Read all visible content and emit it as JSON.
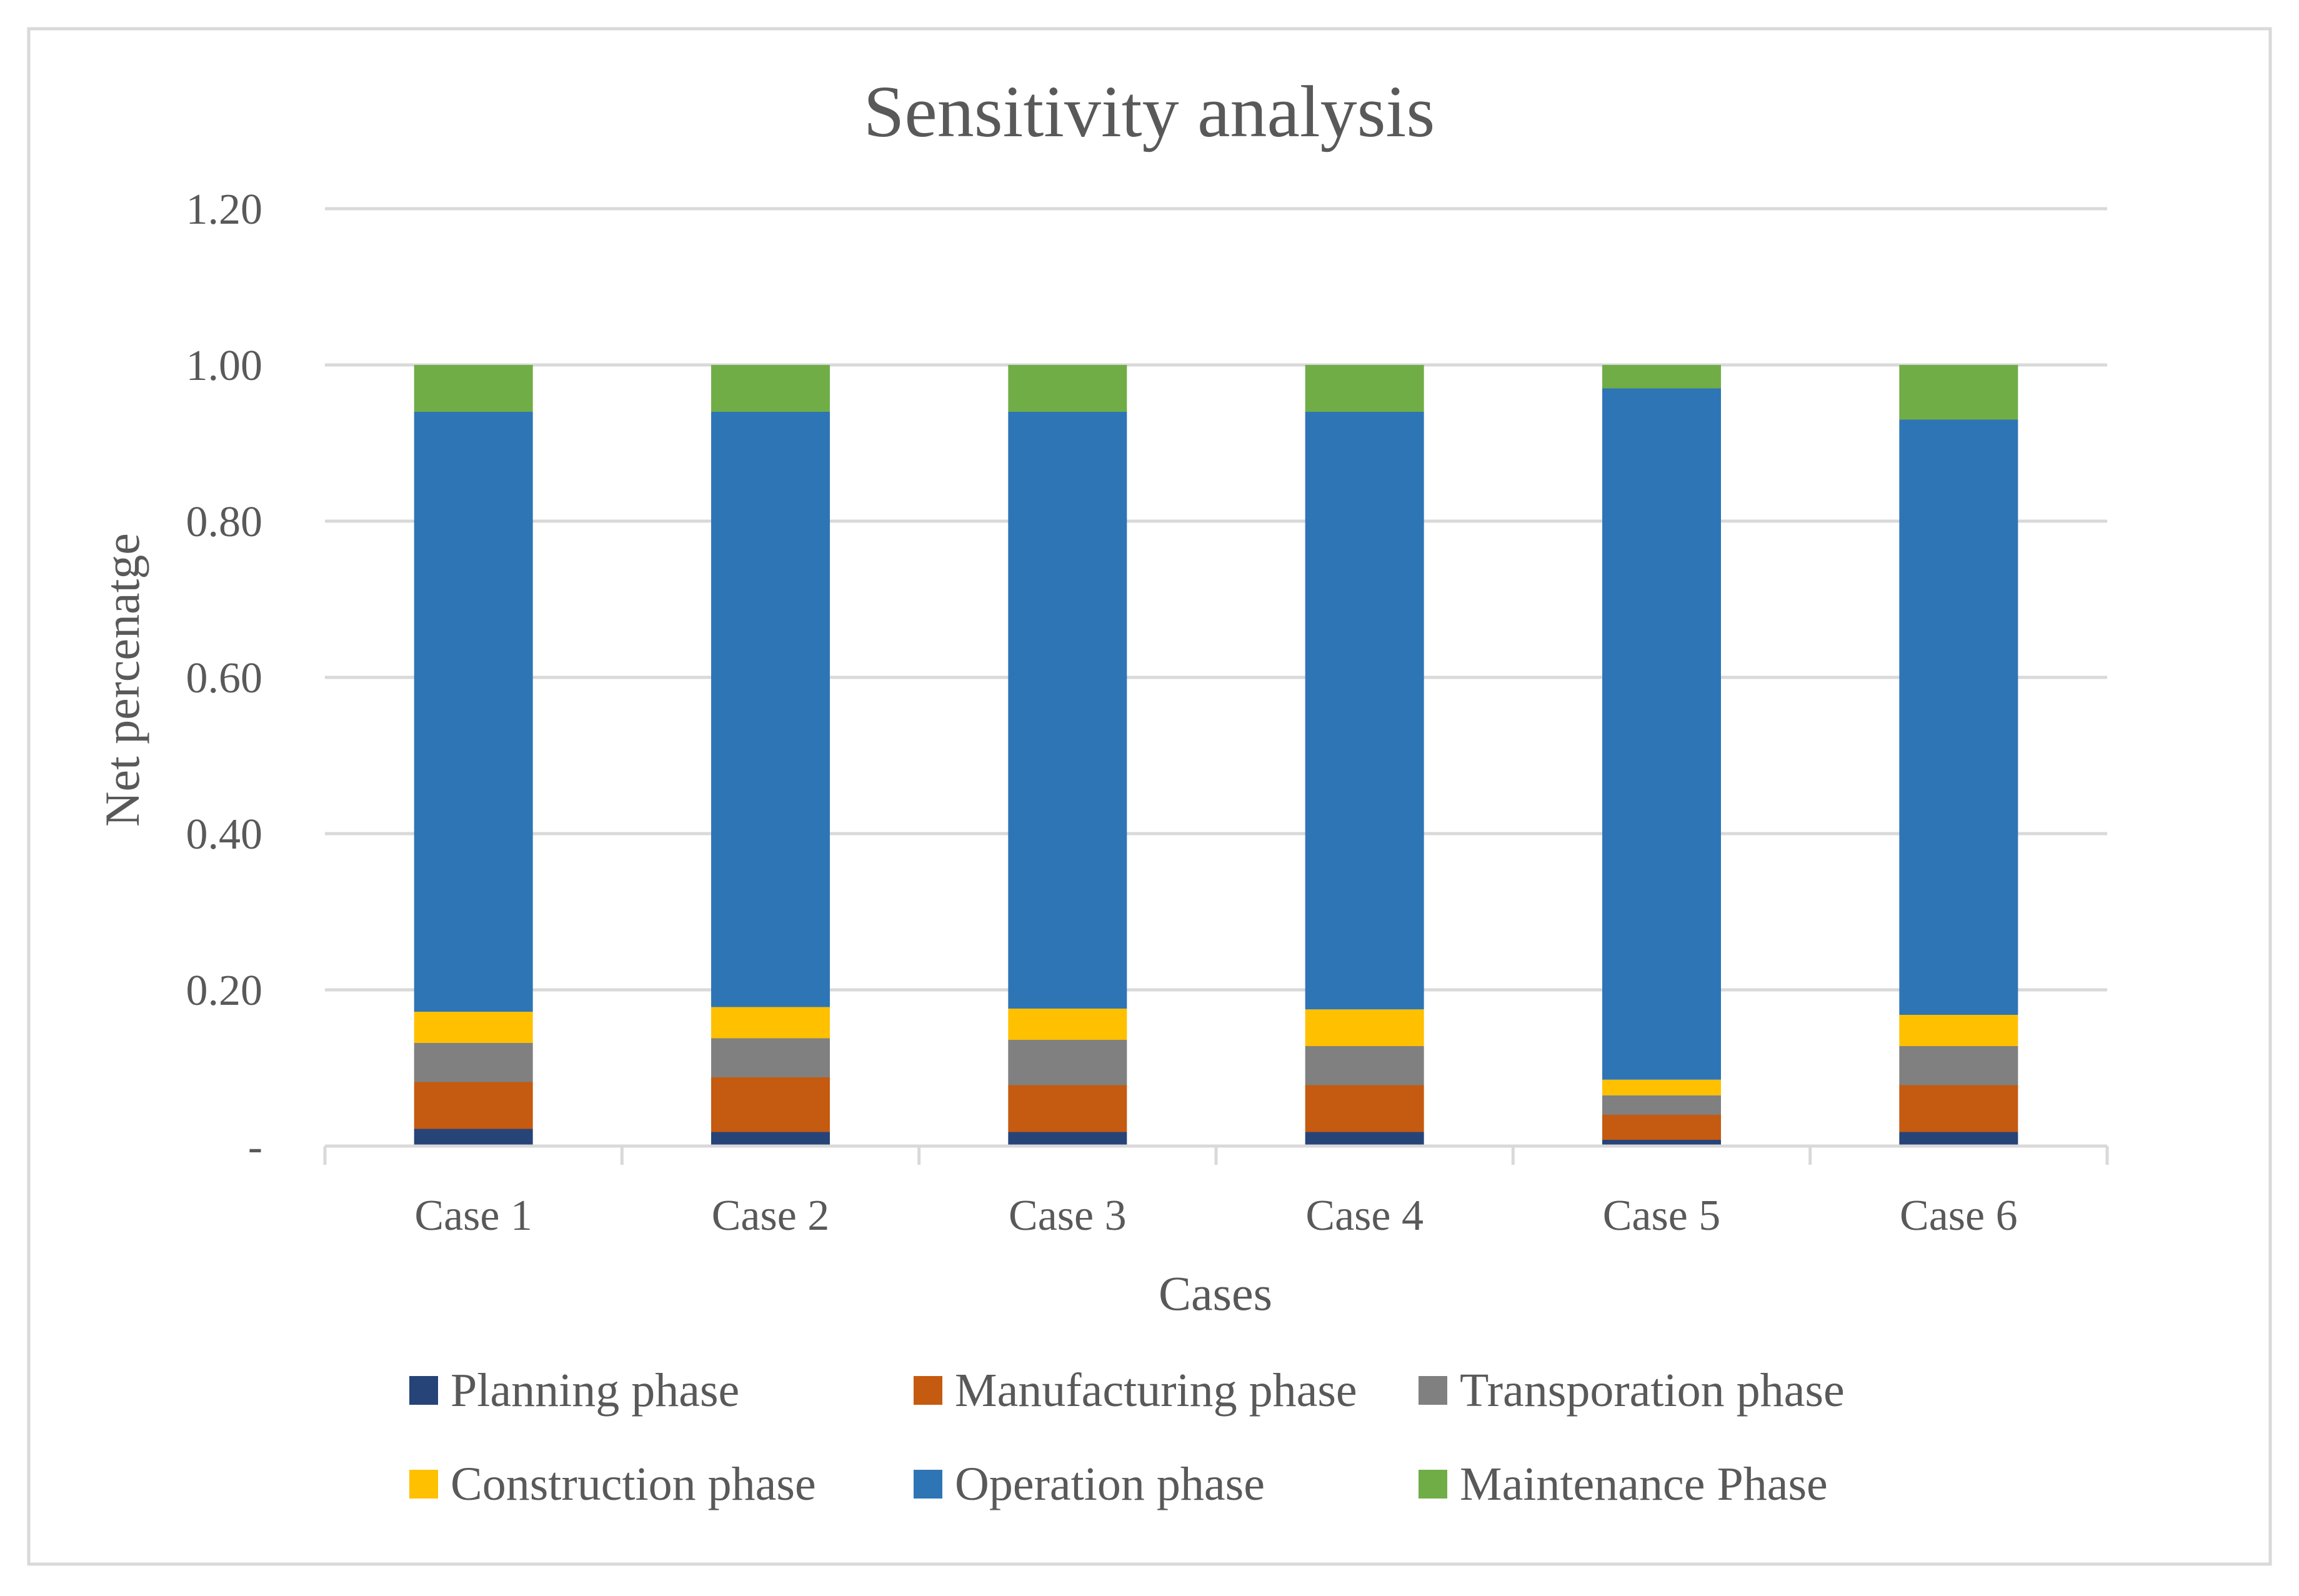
{
  "chart_data": {
    "type": "bar",
    "stacked": true,
    "title": "Sensitivity analysis",
    "xlabel": "Cases",
    "ylabel": "Net percenatge",
    "ylim": [
      0,
      1.2
    ],
    "yticks": [
      0,
      0.2,
      0.4,
      0.6,
      0.8,
      1.0,
      1.2
    ],
    "ytick_labels": [
      "-",
      "0.20",
      "0.40",
      "0.60",
      "0.80",
      "1.00",
      "1.20"
    ],
    "grid": true,
    "legend_position": "bottom",
    "categories": [
      "Case 1",
      "Case 2",
      "Case 3",
      "Case 4",
      "Case 5",
      "Case 6"
    ],
    "series": [
      {
        "name": "Planning phase",
        "color": "#264478",
        "values": [
          0.022,
          0.018,
          0.018,
          0.018,
          0.008,
          0.018
        ]
      },
      {
        "name": "Manufacturing phase",
        "color": "#C55A11",
        "values": [
          0.06,
          0.07,
          0.06,
          0.06,
          0.032,
          0.06
        ]
      },
      {
        "name": "Transporation phase",
        "color": "#808080",
        "values": [
          0.05,
          0.05,
          0.058,
          0.05,
          0.025,
          0.05
        ]
      },
      {
        "name": "Construction phase",
        "color": "#FFC000",
        "values": [
          0.04,
          0.04,
          0.04,
          0.047,
          0.02,
          0.04
        ]
      },
      {
        "name": "Operation phase",
        "color": "#2E75B6",
        "values": [
          0.768,
          0.762,
          0.764,
          0.765,
          0.885,
          0.762
        ]
      },
      {
        "name": "Maintenance Phase",
        "color": "#70AD47",
        "values": [
          0.06,
          0.06,
          0.06,
          0.06,
          0.03,
          0.07
        ]
      }
    ]
  }
}
